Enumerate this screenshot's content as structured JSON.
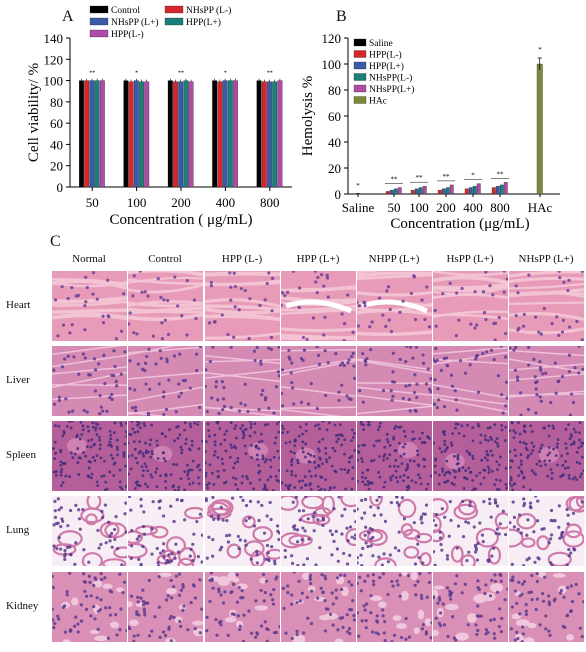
{
  "figure": {
    "panels": {
      "a": "A",
      "b": "B",
      "c": "C"
    }
  },
  "chart_data": [
    {
      "type": "bar",
      "panel": "A",
      "title": "",
      "xlabel": "Concentration ( μg/mL)",
      "ylabel": "Cell viability/ %",
      "ylim": [
        0,
        140
      ],
      "yticks": [
        0,
        20,
        40,
        60,
        80,
        100,
        120,
        140
      ],
      "categories": [
        "50",
        "100",
        "200",
        "400",
        "800"
      ],
      "legend_position": "top",
      "series": [
        {
          "name": "Control",
          "color": "#000000",
          "values": [
            100,
            100,
            100,
            100,
            100
          ]
        },
        {
          "name": "NHsPP (L-)",
          "color": "#d7262b",
          "values": [
            100,
            99,
            99,
            99,
            99
          ]
        },
        {
          "name": "NHsPP (L+)",
          "color": "#3a5ba8",
          "values": [
            100,
            100,
            99,
            100,
            99
          ]
        },
        {
          "name": "HPP(L+)",
          "color": "#1b7f7a",
          "values": [
            100,
            99,
            100,
            100,
            99
          ]
        },
        {
          "name": "HPP(L-)",
          "color": "#b04aa8",
          "values": [
            100,
            99,
            99,
            100,
            100
          ]
        }
      ],
      "annotations": [
        "**",
        "*",
        "**",
        "*",
        "**"
      ]
    },
    {
      "type": "bar",
      "panel": "B",
      "title": "",
      "xlabel": "Concentration (μg/mL)",
      "ylabel": "Hemolysis %",
      "ylim": [
        0,
        120
      ],
      "yticks": [
        0,
        20,
        40,
        60,
        80,
        100,
        120
      ],
      "categories": [
        "Saline",
        "50",
        "100",
        "200",
        "400",
        "800",
        "HAc"
      ],
      "legend_position": "top-left",
      "series": [
        {
          "name": "Saline",
          "color": "#000000",
          "values": [
            0.5,
            null,
            null,
            null,
            null,
            null,
            null
          ]
        },
        {
          "name": "HPP(L-)",
          "color": "#d7262b",
          "values": [
            null,
            2,
            3,
            3,
            4,
            5,
            null
          ]
        },
        {
          "name": "HPP(L+)",
          "color": "#3a5ba8",
          "values": [
            null,
            3,
            4,
            4,
            5,
            6,
            null
          ]
        },
        {
          "name": "NHsPP(L-)",
          "color": "#1b7f7a",
          "values": [
            null,
            4,
            5,
            5,
            6,
            7,
            null
          ]
        },
        {
          "name": "NHsPP(L+)",
          "color": "#b04aa8",
          "values": [
            null,
            5,
            6,
            7,
            8,
            9,
            null
          ]
        },
        {
          "name": "HAc",
          "color": "#7a8a3a",
          "values": [
            null,
            null,
            null,
            null,
            null,
            null,
            100
          ]
        }
      ],
      "annotations": [
        "*",
        "**",
        "**",
        "**",
        "*",
        "**",
        "*"
      ]
    }
  ],
  "histology": {
    "columns": [
      "Normal",
      "Control",
      "HPP (L-)",
      "HPP (L+)",
      "NHPP (L+)",
      "HsPP (L+)",
      "NHsPP (L+)"
    ],
    "rows": [
      "Heart",
      "Liver",
      "Spleen",
      "Lung",
      "Kidney"
    ]
  }
}
